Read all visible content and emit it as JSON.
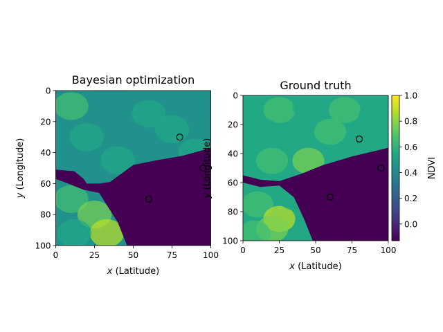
{
  "chart_data": [
    {
      "type": "heatmap",
      "title": "Bayesian optimization",
      "xlabel_var": "x",
      "xlabel_rest": " (Latitude)",
      "ylabel_var": "y",
      "ylabel_rest": " (Longitude)",
      "xlim": [
        0,
        100
      ],
      "ylim": [
        100,
        0
      ],
      "xticks": [
        0,
        25,
        50,
        75,
        100
      ],
      "yticks": [
        0,
        20,
        40,
        60,
        80,
        100
      ],
      "colormap": "viridis",
      "value_range": [
        -0.13,
        1.0
      ],
      "grid": false,
      "markers": [
        {
          "x": 80,
          "y": 30
        },
        {
          "x": 95,
          "y": 50
        },
        {
          "x": 60,
          "y": 70
        }
      ]
    },
    {
      "type": "heatmap",
      "title": "Ground truth",
      "xlabel_var": "x",
      "xlabel_rest": " (Latitude)",
      "ylabel_var": "y",
      "ylabel_rest": " (Longitude)",
      "xlim": [
        0,
        100
      ],
      "ylim": [
        100,
        0
      ],
      "xticks": [
        0,
        25,
        50,
        75,
        100
      ],
      "yticks": [
        0,
        20,
        40,
        60,
        80,
        100
      ],
      "colormap": "viridis",
      "value_range": [
        -0.13,
        1.0
      ],
      "grid": false,
      "markers": [
        {
          "x": 80,
          "y": 30
        },
        {
          "x": 95,
          "y": 50
        },
        {
          "x": 60,
          "y": 70
        }
      ],
      "colorbar": {
        "label": "NDVI",
        "ticks": [
          0.0,
          0.2,
          0.4,
          0.6,
          0.8,
          1.0
        ],
        "tick_labels": [
          "0.0",
          "0.2",
          "0.4",
          "0.6",
          "0.8",
          "1.0"
        ],
        "range": [
          -0.13,
          1.0
        ]
      }
    }
  ],
  "colors": {
    "viridis": [
      "#440154",
      "#482475",
      "#414487",
      "#355f8d",
      "#2a788e",
      "#21918c",
      "#22a884",
      "#44bf70",
      "#7ad151",
      "#bddf26",
      "#fde725"
    ],
    "marker_edge": "#000000"
  }
}
